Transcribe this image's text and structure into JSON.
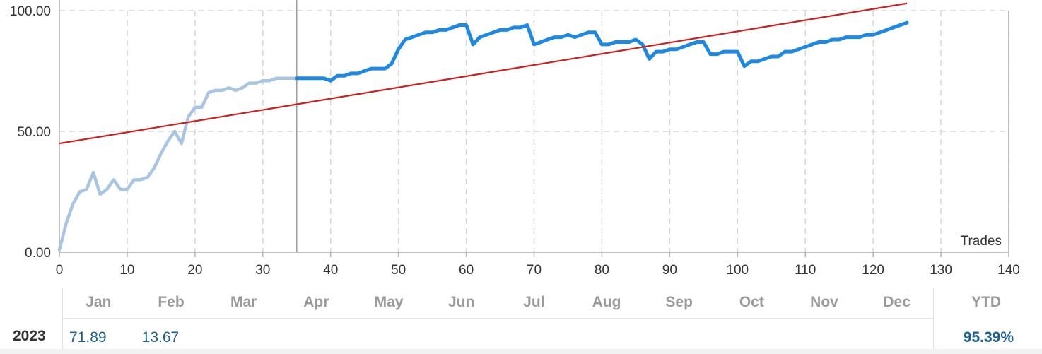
{
  "chart_data": {
    "type": "line",
    "y_ticks": [
      "0.00",
      "50.00",
      "100.00"
    ],
    "x_ticks": [
      0,
      10,
      20,
      30,
      40,
      50,
      60,
      70,
      80,
      90,
      100,
      110,
      120,
      130,
      140
    ],
    "xlim": [
      0,
      140
    ],
    "ylim": [
      0,
      100
    ],
    "xlabel": "Trades",
    "grid": true,
    "divider_x": 35,
    "series": [
      {
        "color": "#1e88e5",
        "past_color": "#a8c6e4",
        "x": [
          0,
          1,
          2,
          3,
          4,
          5,
          6,
          7,
          8,
          9,
          10,
          11,
          12,
          13,
          14,
          15,
          16,
          17,
          18,
          19,
          20,
          21,
          22,
          23,
          24,
          25,
          26,
          27,
          28,
          29,
          30,
          31,
          32,
          33,
          34,
          35,
          36,
          37,
          38,
          39,
          40,
          41,
          42,
          43,
          44,
          45,
          46,
          47,
          48,
          49,
          50,
          51,
          52,
          53,
          54,
          55,
          56,
          57,
          58,
          59,
          60,
          61,
          62,
          63,
          64,
          65,
          66,
          67,
          68,
          69,
          70,
          71,
          72,
          73,
          74,
          75,
          76,
          77,
          78,
          79,
          80,
          81,
          82,
          83,
          84,
          85,
          86,
          87,
          88,
          89,
          90,
          91,
          92,
          93,
          94,
          95,
          96,
          97,
          98,
          99,
          100,
          101,
          102,
          103,
          104,
          105,
          106,
          107,
          108,
          109,
          110,
          111,
          112,
          113,
          114,
          115,
          116,
          117,
          118,
          119,
          120,
          121,
          122,
          123,
          124,
          125
        ],
        "values": [
          1,
          12,
          20,
          25,
          26,
          33,
          24,
          26,
          30,
          26,
          26,
          30,
          30,
          31,
          35,
          41,
          46,
          50,
          45,
          56,
          60,
          60,
          66,
          67,
          67,
          68,
          67,
          68,
          70,
          70,
          71,
          71,
          72,
          72,
          72,
          72,
          72,
          72,
          72,
          72,
          71,
          73,
          73,
          74,
          74,
          75,
          76,
          76,
          76,
          78,
          84,
          88,
          89,
          90,
          91,
          91,
          92,
          92,
          93,
          94,
          94,
          86,
          89,
          90,
          91,
          92,
          92,
          93,
          93,
          94,
          86,
          87,
          88,
          89,
          89,
          90,
          89,
          90,
          91,
          91,
          86,
          86,
          87,
          87,
          87,
          88,
          86,
          80,
          83,
          83,
          84,
          84,
          85,
          86,
          87,
          87,
          82,
          82,
          83,
          83,
          83,
          77,
          79,
          79,
          80,
          81,
          81,
          83,
          83,
          84,
          85,
          86,
          87,
          87,
          88,
          88,
          89,
          89,
          89,
          90,
          90,
          91,
          92,
          93,
          94,
          95
        ]
      },
      {
        "color": "#cc1f1f",
        "x": [
          0,
          125
        ],
        "values": [
          45,
          103
        ]
      }
    ]
  },
  "table": {
    "months": [
      "Jan",
      "Feb",
      "Mar",
      "Apr",
      "May",
      "Jun",
      "Jul",
      "Aug",
      "Sep",
      "Oct",
      "Nov",
      "Dec"
    ],
    "ytd_label": "YTD",
    "year": "2023",
    "values": [
      "71.89",
      "13.67",
      "",
      "",
      "",
      "",
      "",
      "",
      "",
      "",
      "",
      ""
    ],
    "ytd": "95.39%"
  }
}
